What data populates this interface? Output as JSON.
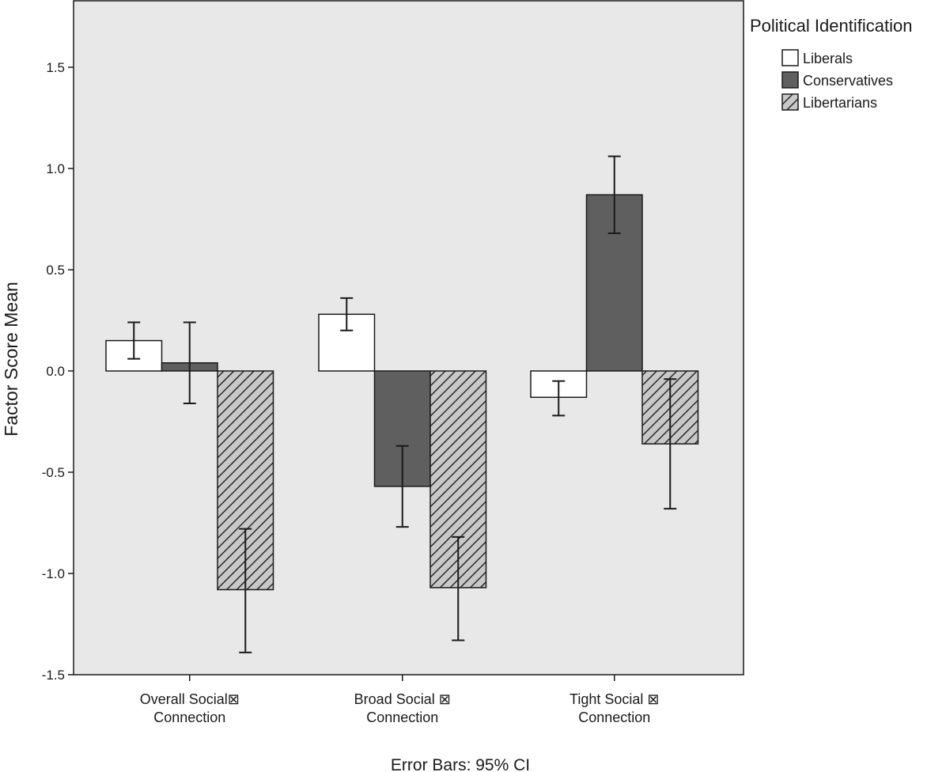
{
  "chart_data": {
    "type": "bar",
    "ylabel": "Factor Score Mean",
    "ylim": [
      -1.5,
      1.8
    ],
    "yticks": [
      {
        "value": 1.5,
        "label": "1.5"
      },
      {
        "value": 1.0,
        "label": "1.0"
      },
      {
        "value": 0.5,
        "label": "0.5"
      },
      {
        "value": 0.0,
        "label": "0.0"
      },
      {
        "value": -0.5,
        "label": "-0.5"
      },
      {
        "value": -1.0,
        "label": "-1.0"
      },
      {
        "value": -1.5,
        "label": "-1.5"
      }
    ],
    "categories": [
      {
        "line1": "Overall Social⊠",
        "line2": "Connection"
      },
      {
        "line1": "Broad Social ⊠",
        "line2": "Connection"
      },
      {
        "line1": "Tight Social ⊠",
        "line2": "Connection"
      }
    ],
    "series": [
      {
        "name": "Liberals",
        "fill": "#ffffff",
        "pattern": "none",
        "values": [
          0.15,
          0.28,
          -0.13
        ],
        "ci_low": [
          0.06,
          0.2,
          -0.22
        ],
        "ci_high": [
          0.24,
          0.36,
          -0.05
        ]
      },
      {
        "name": "Conservatives",
        "fill": "#5f5f5f",
        "pattern": "none",
        "values": [
          0.04,
          -0.57,
          0.87
        ],
        "ci_low": [
          -0.16,
          -0.77,
          0.68
        ],
        "ci_high": [
          0.24,
          -0.37,
          1.06
        ]
      },
      {
        "name": "Libertarians",
        "fill": "#c8c8c8",
        "pattern": "diagonal-hatch",
        "values": [
          -1.08,
          -1.07,
          -0.36
        ],
        "ci_low": [
          -1.39,
          -1.33,
          -0.68
        ],
        "ci_high": [
          -0.78,
          -0.82,
          -0.04
        ]
      }
    ],
    "legend": {
      "title": "Political Identification",
      "position": "top-right"
    },
    "footnote": "Error Bars: 95% CI",
    "plot_background": "#e8e8e8",
    "grid": false
  }
}
